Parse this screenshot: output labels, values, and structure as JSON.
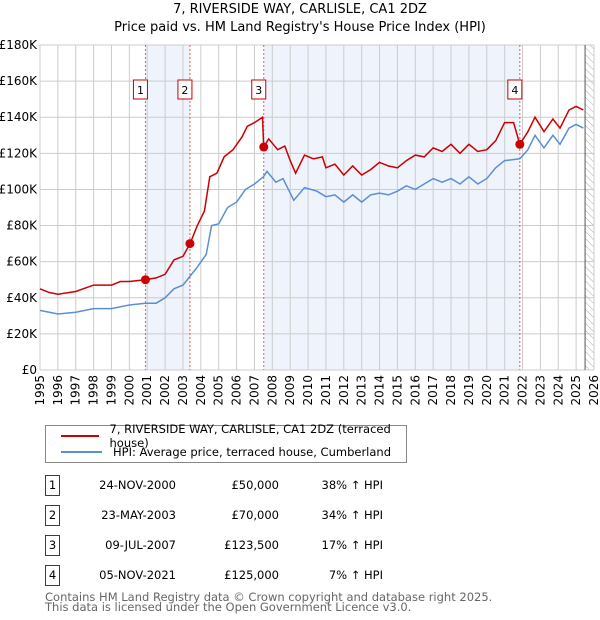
{
  "chart_data": {
    "type": "line",
    "title": "7, RIVERSIDE WAY, CARLISLE, CA1 2DZ",
    "subtitle": "Price paid vs. HM Land Registry's House Price Index (HPI)",
    "xlim": [
      1995,
      2026
    ],
    "ylim": [
      0,
      180000
    ],
    "yticks": [
      {
        "v": 0,
        "l": "£0"
      },
      {
        "v": 20000,
        "l": "£20K"
      },
      {
        "v": 40000,
        "l": "£40K"
      },
      {
        "v": 60000,
        "l": "£60K"
      },
      {
        "v": 80000,
        "l": "£80K"
      },
      {
        "v": 100000,
        "l": "£100K"
      },
      {
        "v": 120000,
        "l": "£120K"
      },
      {
        "v": 140000,
        "l": "£140K"
      },
      {
        "v": 160000,
        "l": "£160K"
      },
      {
        "v": 180000,
        "l": "£180K"
      }
    ],
    "xticks": [
      "1995",
      "1996",
      "1997",
      "1998",
      "1999",
      "2000",
      "2001",
      "2002",
      "2003",
      "2004",
      "2005",
      "2006",
      "2007",
      "2008",
      "2009",
      "2010",
      "2011",
      "2012",
      "2013",
      "2014",
      "2015",
      "2016",
      "2017",
      "2018",
      "2019",
      "2020",
      "2021",
      "2022",
      "2023",
      "2024",
      "2025",
      "2026"
    ],
    "grid": true,
    "series": [
      {
        "name": "7, RIVERSIDE WAY, CARLISLE, CA1 2DZ (terraced house)",
        "color": "#cc0000",
        "x": [
          1995,
          1995.5,
          1996,
          1997,
          1998,
          1999,
          1999.5,
          2000,
          2000.9,
          2001.5,
          2002,
          2002.5,
          2003,
          2003.4,
          2003.8,
          2004.2,
          2004.5,
          2004.9,
          2005.3,
          2005.8,
          2006.3,
          2006.6,
          2007,
          2007.45,
          2007.52,
          2007.8,
          2008.3,
          2008.7,
          2009,
          2009.3,
          2009.8,
          2010.3,
          2010.8,
          2011,
          2011.5,
          2012,
          2012.5,
          2013,
          2013.5,
          2014,
          2014.5,
          2015,
          2015.5,
          2016,
          2016.5,
          2017,
          2017.5,
          2018,
          2018.5,
          2019,
          2019.5,
          2020,
          2020.5,
          2021,
          2021.5,
          2021.85,
          2022.3,
          2022.7,
          2023.2,
          2023.7,
          2024.1,
          2024.6,
          2025,
          2025.4
        ],
        "y": [
          45000,
          43000,
          42000,
          43500,
          47000,
          47000,
          49000,
          49000,
          50000,
          51000,
          53000,
          61000,
          63000,
          70000,
          80000,
          88000,
          107000,
          109000,
          118000,
          122000,
          129000,
          135000,
          137000,
          140000,
          123500,
          128000,
          122000,
          124000,
          116000,
          109000,
          119000,
          117000,
          118000,
          112000,
          114000,
          108000,
          113000,
          108000,
          111000,
          115000,
          113000,
          112000,
          116000,
          119000,
          118000,
          123000,
          121000,
          125000,
          120000,
          125000,
          121000,
          122000,
          127000,
          137000,
          137000,
          125000,
          132000,
          140000,
          132000,
          139000,
          134000,
          144000,
          146000,
          144000
        ]
      },
      {
        "name": "HPI: Average price, terraced house, Cumberland",
        "color": "#5b8fd4",
        "x": [
          1995,
          1996,
          1997,
          1998,
          1999,
          2000,
          2000.9,
          2001.5,
          2002,
          2002.5,
          2003,
          2003.4,
          2003.8,
          2004.3,
          2004.6,
          2005,
          2005.5,
          2006,
          2006.5,
          2007,
          2007.5,
          2007.7,
          2008.2,
          2008.6,
          2009.2,
          2009.8,
          2010.5,
          2011,
          2011.5,
          2012,
          2012.5,
          2013,
          2013.5,
          2014,
          2014.5,
          2015,
          2015.5,
          2016,
          2016.5,
          2017,
          2017.5,
          2018,
          2018.5,
          2019,
          2019.5,
          2020,
          2020.5,
          2021,
          2021.85,
          2022.3,
          2022.7,
          2023.2,
          2023.7,
          2024.1,
          2024.6,
          2025,
          2025.4
        ],
        "y": [
          33000,
          31000,
          32000,
          34000,
          34000,
          36000,
          37000,
          37000,
          40000,
          45000,
          47000,
          52000,
          57000,
          64000,
          80000,
          81000,
          90000,
          93000,
          100000,
          103000,
          107000,
          110000,
          104000,
          106000,
          94000,
          101000,
          99000,
          96000,
          97000,
          93000,
          97000,
          93000,
          97000,
          98000,
          97000,
          99000,
          102000,
          100000,
          103000,
          106000,
          104000,
          106000,
          103000,
          107000,
          103000,
          106000,
          112000,
          116000,
          117000,
          122000,
          130000,
          123000,
          130000,
          125000,
          134000,
          136000,
          134000
        ]
      }
    ],
    "sales": [
      {
        "n": "1",
        "x": 2000.9,
        "price": 50000,
        "date": "24-NOV-2000",
        "price_label": "£50,000",
        "hpi": "38% ↑ HPI"
      },
      {
        "n": "2",
        "x": 2003.39,
        "price": 70000,
        "date": "23-MAY-2003",
        "price_label": "£70,000",
        "hpi": "34% ↑ HPI"
      },
      {
        "n": "3",
        "x": 2007.52,
        "price": 123500,
        "date": "09-JUL-2007",
        "price_label": "£123,500",
        "hpi": "17% ↑ HPI"
      },
      {
        "n": "4",
        "x": 2021.85,
        "price": 125000,
        "date": "05-NOV-2021",
        "price_label": "£125,000",
        "hpi": "7% ↑ HPI"
      }
    ],
    "legend_placement": "bottom"
  },
  "footer": {
    "line1": "Contains HM Land Registry data © Crown copyright and database right 2025.",
    "line2": "This data is licensed under the Open Government Licence v3.0."
  }
}
